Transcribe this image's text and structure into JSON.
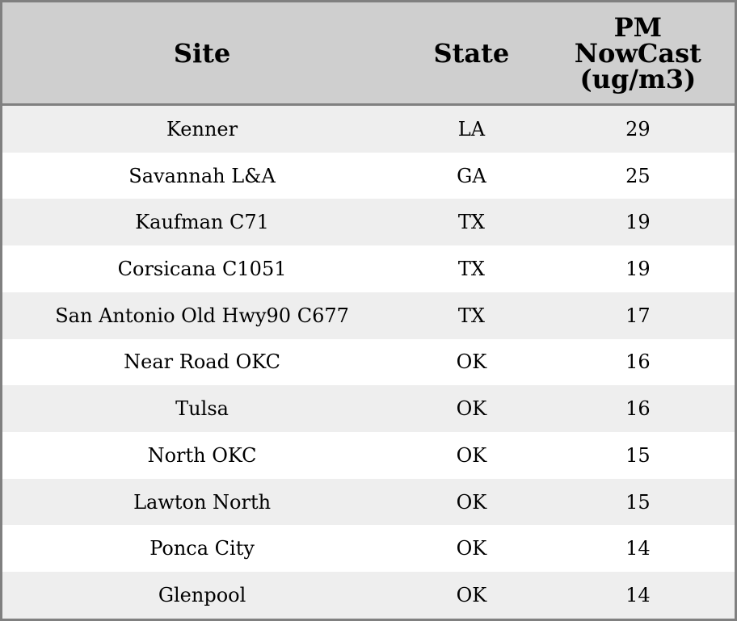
{
  "table": {
    "headers": [
      "Site",
      "State",
      "PM NowCast (ug/m3)"
    ],
    "header_lines": [
      "PM",
      "NowCast",
      "(ug/m3)"
    ],
    "rows": [
      [
        "Kenner",
        "LA",
        "29"
      ],
      [
        "Savannah L&A",
        "GA",
        "25"
      ],
      [
        "Kaufman C71",
        "TX",
        "19"
      ],
      [
        "Corsicana C1051",
        "TX",
        "19"
      ],
      [
        "San Antonio Old Hwy90 C677",
        "TX",
        "17"
      ],
      [
        "Near Road OKC",
        "OK",
        "16"
      ],
      [
        "Tulsa",
        "OK",
        "16"
      ],
      [
        "North OKC",
        "OK",
        "15"
      ],
      [
        "Lawton North",
        "OK",
        "15"
      ],
      [
        "Ponca City",
        "OK",
        "14"
      ],
      [
        "Glenpool",
        "OK",
        "14"
      ]
    ]
  },
  "colors": {
    "header_bg": "#cfcfcf",
    "stripe_bg": "#eeeeee",
    "border": "#808080"
  }
}
